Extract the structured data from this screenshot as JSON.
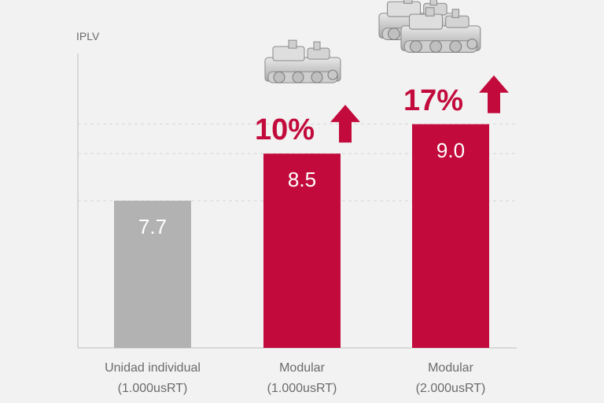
{
  "chart_data": {
    "type": "bar",
    "ylabel": "IPLV",
    "categories": [
      [
        "Unidad individual",
        "(1.000usRT)"
      ],
      [
        "Modular",
        "(1.000usRT)"
      ],
      [
        "Modular",
        "(2.000usRT)"
      ]
    ],
    "values": [
      7.7,
      8.5,
      9.0
    ],
    "value_labels": [
      "7.7",
      "8.5",
      "9.0"
    ],
    "bar_colors": [
      "#b2b2b2",
      "#c20b3c",
      "#c20b3c"
    ],
    "annotations": [
      {
        "bar": 1,
        "text": "10%",
        "icon": "up-arrow-icon"
      },
      {
        "bar": 2,
        "text": "17%",
        "icon": "up-arrow-icon"
      }
    ],
    "images": [
      {
        "bar": 1,
        "icon": "chiller-unit-icon",
        "count": 1
      },
      {
        "bar": 2,
        "icon": "chiller-unit-icon",
        "count": 2
      }
    ],
    "accent_color": "#c20b3c",
    "grid": "dashed horizontal",
    "ylim": [
      5.2,
      10.2
    ]
  }
}
